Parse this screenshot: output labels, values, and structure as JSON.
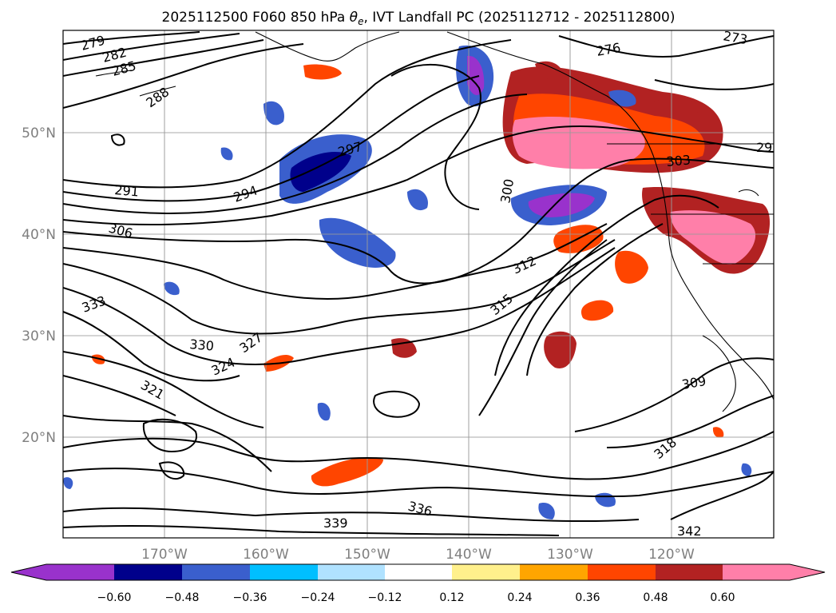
{
  "title": "2025112500 F060 850 hPa θe, IVT Landfall PC (2025112712 - 2025112800)",
  "title_parts": {
    "prefix": "2025112500 F060 850 hPa ",
    "symbol": "θ",
    "subscript": "e",
    "suffix": ", IVT Landfall PC (2025112712 - 2025112800)"
  },
  "map": {
    "lon_range": [
      -179,
      -109
    ],
    "lat_range": [
      10,
      60
    ],
    "lat_ticks": [
      {
        "value": 20,
        "label": "20°N"
      },
      {
        "value": 30,
        "label": "30°N"
      },
      {
        "value": 40,
        "label": "40°N"
      },
      {
        "value": 50,
        "label": "50°N"
      }
    ],
    "lon_ticks": [
      {
        "value": -170,
        "label": "170°W"
      },
      {
        "value": -160,
        "label": "160°W"
      },
      {
        "value": -150,
        "label": "150°W"
      },
      {
        "value": -140,
        "label": "140°W"
      },
      {
        "value": -130,
        "label": "130°W"
      },
      {
        "value": -120,
        "label": "120°W"
      }
    ],
    "gridlines": true,
    "contour_labels": [
      "279",
      "282",
      "285",
      "288",
      "291",
      "294",
      "297",
      "300",
      "306",
      "309",
      "312",
      "315",
      "318",
      "321",
      "324",
      "327",
      "330",
      "333",
      "336",
      "339",
      "342",
      "276",
      "273",
      "303",
      "29"
    ]
  },
  "colorbar": {
    "colors": [
      "#9932cc",
      "#00008b",
      "#3a5fcd",
      "#00bfff",
      "#b0e2ff",
      "#ffffff",
      "#fff08c",
      "#ffa500",
      "#ff4500",
      "#b22222",
      "#ff7fa9"
    ],
    "extend": "both",
    "tick_labels": [
      "−0.60",
      "−0.48",
      "−0.36",
      "−0.24",
      "−0.12",
      "0.12",
      "0.24",
      "0.36",
      "0.48",
      "0.60"
    ]
  }
}
